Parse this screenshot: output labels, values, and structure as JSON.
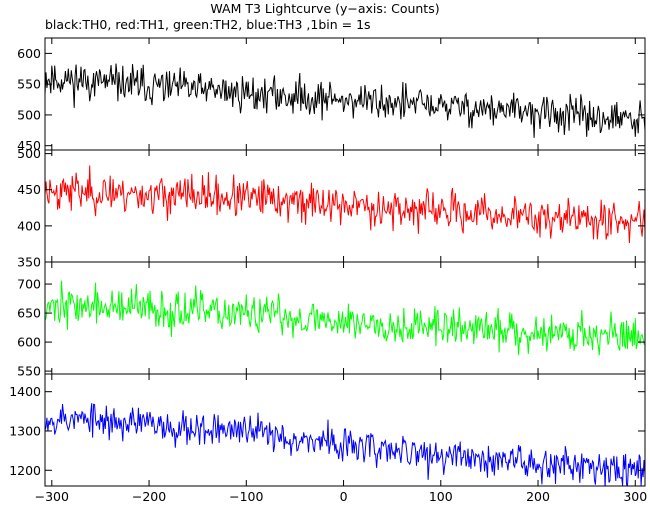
{
  "chart_data": {
    "type": "line",
    "title": "WAM T3 Lightcurve (y−axis: Counts)",
    "subtitle": "black:TH0, red:TH1, green:TH2, blue:TH3 ,1bin = 1s",
    "xlabel": "",
    "xlim": [
      -307,
      310
    ],
    "xticks": [
      -300,
      -200,
      -100,
      0,
      100,
      200,
      300
    ],
    "x_step": 1,
    "panels": [
      {
        "name": "TH0",
        "color": "#000000",
        "ylim": [
          443,
          625
        ],
        "yticks": [
          450,
          500,
          550,
          600
        ],
        "trend": [
          [
            -307,
            560
          ],
          [
            -100,
            535
          ],
          [
            100,
            515
          ],
          [
            307,
            490
          ]
        ],
        "noise": 22,
        "seed": 11
      },
      {
        "name": "TH1",
        "color": "#ff0000",
        "ylim": [
          350,
          505
        ],
        "yticks": [
          350,
          400,
          450,
          500
        ],
        "trend": [
          [
            -307,
            450
          ],
          [
            -100,
            438
          ],
          [
            100,
            420
          ],
          [
            307,
            405
          ]
        ],
        "noise": 20,
        "seed": 23
      },
      {
        "name": "TH2",
        "color": "#00ff00",
        "ylim": [
          545,
          738
        ],
        "yticks": [
          550,
          600,
          650,
          700
        ],
        "trend": [
          [
            -307,
            665
          ],
          [
            -100,
            648
          ],
          [
            100,
            625
          ],
          [
            307,
            610
          ]
        ],
        "noise": 25,
        "seed": 37
      },
      {
        "name": "TH3",
        "color": "#0000ff",
        "ylim": [
          1160,
          1445
        ],
        "yticks": [
          1200,
          1300,
          1400
        ],
        "trend": [
          [
            -307,
            1335
          ],
          [
            -100,
            1300
          ],
          [
            0,
            1265
          ],
          [
            100,
            1235
          ],
          [
            307,
            1205
          ]
        ],
        "noise": 32,
        "seed": 53
      }
    ]
  }
}
